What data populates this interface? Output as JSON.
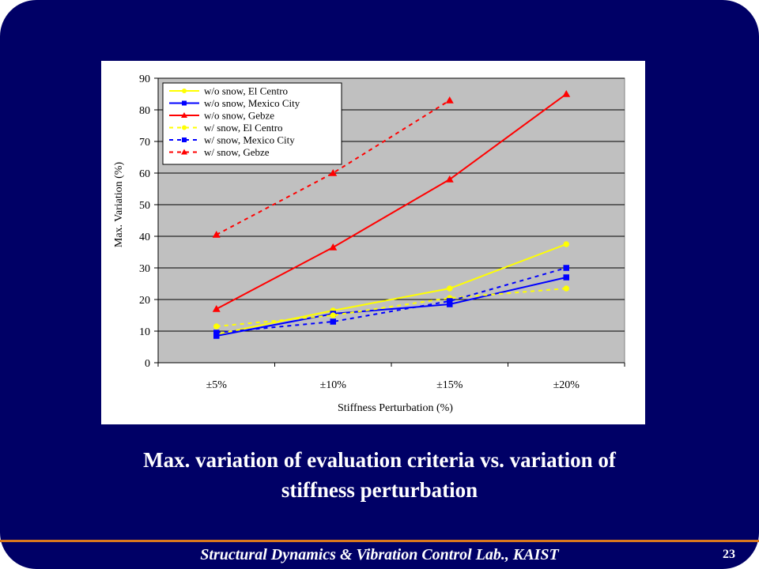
{
  "slide": {
    "caption_line1": "Max. variation of evaluation criteria vs. variation of",
    "caption_line2": "stiffness perturbation",
    "footer": "Structural Dynamics & Vibration Control Lab., KAIST",
    "page_number": "23",
    "colors": {
      "background": "#000066",
      "footer_rule": "#d9781f",
      "text": "#ffffff"
    }
  },
  "chart_data": {
    "type": "line",
    "title": "",
    "xlabel": "Stiffness Perturbation (%)",
    "ylabel": "Max. Variation (%)",
    "categories": [
      "±5%",
      "±10%",
      "±15%",
      "±20%"
    ],
    "ylim": [
      0,
      90
    ],
    "yticks": [
      0,
      10,
      20,
      30,
      40,
      50,
      60,
      70,
      80,
      90
    ],
    "grid": true,
    "legend": "top-left",
    "plot_background": "#c0c0c0",
    "series": [
      {
        "name": "w/o snow, El Centro",
        "color": "#ffff00",
        "marker": "circle",
        "dashed": false,
        "values": [
          9,
          16.5,
          23.5,
          37.5
        ]
      },
      {
        "name": "w/o snow, Mexico City",
        "color": "#0000ff",
        "marker": "square",
        "dashed": false,
        "values": [
          8.5,
          15.5,
          18.5,
          27
        ]
      },
      {
        "name": "w/o snow, Gebze",
        "color": "#ff0000",
        "marker": "triangle",
        "dashed": false,
        "values": [
          17,
          36.5,
          58,
          85
        ]
      },
      {
        "name": "w/ snow, El Centro",
        "color": "#ffff00",
        "marker": "circle",
        "dashed": true,
        "values": [
          11.5,
          15,
          20.5,
          23.5
        ]
      },
      {
        "name": "w/ snow, Mexico City",
        "color": "#0000ff",
        "marker": "square",
        "dashed": true,
        "values": [
          9.5,
          13,
          19.5,
          30
        ]
      },
      {
        "name": "w/ snow, Gebze",
        "color": "#ff0000",
        "marker": "triangle",
        "dashed": true,
        "values": [
          40.5,
          60,
          83,
          null
        ]
      }
    ]
  }
}
